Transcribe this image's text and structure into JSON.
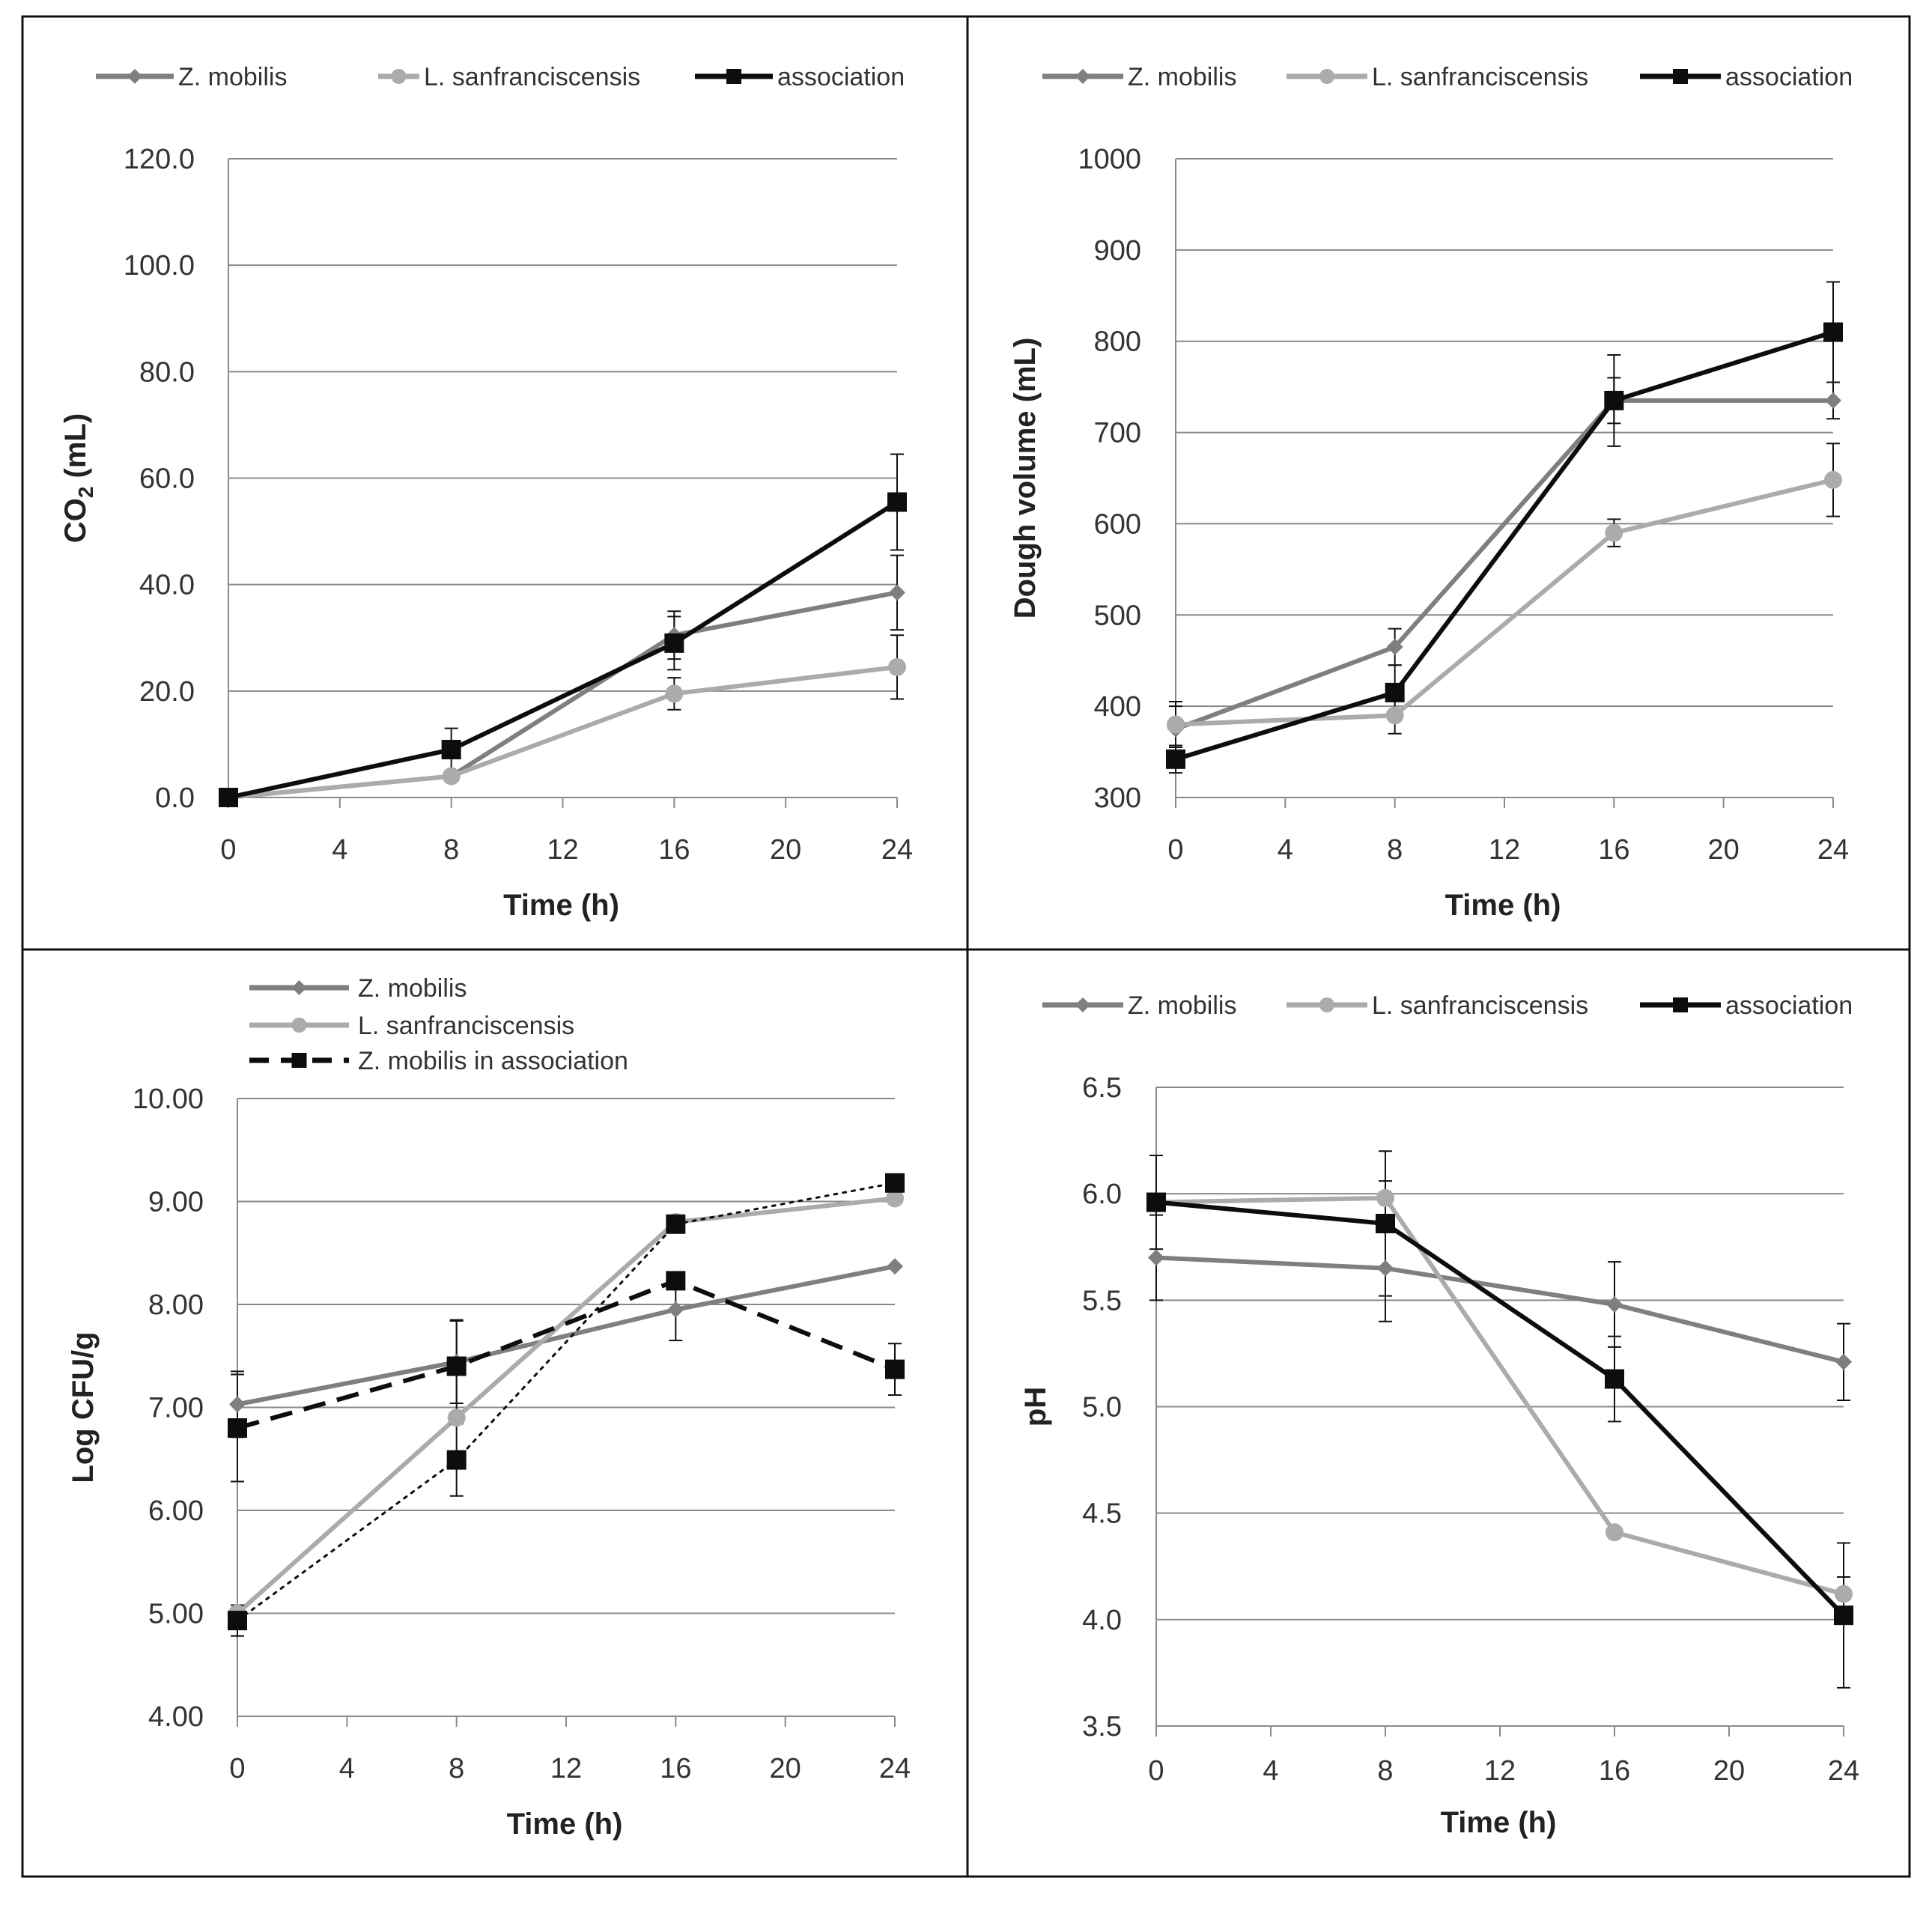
{
  "series_colors": {
    "z_mobilis": "#7f7f7f",
    "l_sanfranciscensis": "#ababab",
    "association": "#0d0d0d"
  },
  "chart_data": [
    {
      "id": "co2",
      "type": "line",
      "title": "",
      "xlabel": "Time (h)",
      "ylabel_main": "CO",
      "ylabel_sub": "2",
      "ylabel_tail": " (mL)",
      "xticks": [
        "0",
        "4",
        "8",
        "12",
        "16",
        "20",
        "24"
      ],
      "yticks": [
        "0.0",
        "20.0",
        "40.0",
        "60.0",
        "80.0",
        "100.0",
        "120.0"
      ],
      "xlim": [
        0,
        24
      ],
      "ylim": [
        0,
        120
      ],
      "grid": true,
      "legend_position": "top",
      "legend": [
        "Z. mobilis",
        "L. sanfranciscensis",
        "association"
      ],
      "x": [
        0,
        8,
        16,
        24
      ],
      "series": [
        {
          "name": "Z. mobilis",
          "key": "z_mobilis",
          "marker": "diamond",
          "dash": "solid",
          "values": [
            0.0,
            4.0,
            30.5,
            38.5
          ],
          "errors": [
            0,
            0,
            4.5,
            7.0
          ]
        },
        {
          "name": "L. sanfranciscensis",
          "key": "l_sanfranciscensis",
          "marker": "circle",
          "dash": "solid",
          "values": [
            0.0,
            4.0,
            19.5,
            24.5
          ],
          "errors": [
            0,
            0,
            3.0,
            6.0
          ]
        },
        {
          "name": "association",
          "key": "association",
          "marker": "square",
          "dash": "solid",
          "values": [
            0.0,
            9.0,
            29.0,
            55.5
          ],
          "errors": [
            0,
            4.0,
            5.0,
            9.0
          ]
        }
      ]
    },
    {
      "id": "dough",
      "type": "line",
      "title": "",
      "xlabel": "Time (h)",
      "ylabel_main": "Dough volume (mL)",
      "ylabel_sub": "",
      "ylabel_tail": "",
      "xticks": [
        "0",
        "4",
        "8",
        "12",
        "16",
        "20",
        "24"
      ],
      "yticks": [
        "300",
        "400",
        "500",
        "600",
        "700",
        "800",
        "900",
        "1000"
      ],
      "xlim": [
        0,
        24
      ],
      "ylim": [
        300,
        1000
      ],
      "grid": true,
      "legend_position": "top",
      "legend": [
        "Z. mobilis",
        "L. sanfranciscensis",
        "association"
      ],
      "x": [
        0,
        8,
        16,
        24
      ],
      "series": [
        {
          "name": "Z. mobilis",
          "key": "z_mobilis",
          "marker": "diamond",
          "dash": "solid",
          "values": [
            375,
            465,
            735,
            735
          ],
          "errors": [
            25,
            20,
            25,
            20
          ]
        },
        {
          "name": "L. sanfranciscensis",
          "key": "l_sanfranciscensis",
          "marker": "circle",
          "dash": "solid",
          "values": [
            380,
            390,
            590,
            648
          ],
          "errors": [
            25,
            20,
            15,
            40
          ]
        },
        {
          "name": "association",
          "key": "association",
          "marker": "square",
          "dash": "solid",
          "values": [
            342,
            415,
            735,
            810
          ],
          "errors": [
            15,
            30,
            50,
            55
          ]
        }
      ]
    },
    {
      "id": "cfu",
      "type": "line",
      "title": "",
      "xlabel": "Time (h)",
      "ylabel_main": "Log CFU/g",
      "ylabel_sub": "",
      "ylabel_tail": "",
      "xticks": [
        "0",
        "4",
        "8",
        "12",
        "16",
        "20",
        "24"
      ],
      "yticks": [
        "4.00",
        "5.00",
        "6.00",
        "7.00",
        "8.00",
        "9.00",
        "10.00"
      ],
      "xlim": [
        0,
        24
      ],
      "ylim": [
        4,
        10
      ],
      "grid": true,
      "legend_position": "top-left",
      "legend": [
        "Z. mobilis",
        "L. sanfranciscensis",
        "Z. mobilis in association"
      ],
      "x": [
        0,
        8,
        16,
        24
      ],
      "series": [
        {
          "name": "Z. mobilis",
          "key": "z_mobilis",
          "marker": "diamond",
          "dash": "solid",
          "values": [
            7.03,
            7.44,
            7.95,
            8.37
          ],
          "errors": [
            0.32,
            0.4,
            0.3,
            0.0
          ]
        },
        {
          "name": "L. sanfranciscensis",
          "key": "l_sanfranciscensis",
          "marker": "circle",
          "dash": "solid",
          "values": [
            5.0,
            6.9,
            8.8,
            9.03
          ],
          "errors": [
            0.0,
            0.0,
            0.0,
            0.0
          ]
        },
        {
          "name": "Z. mobilis in association",
          "key": "association",
          "marker": "square",
          "dash": "dashed",
          "values": [
            6.8,
            7.4,
            8.23,
            7.37
          ],
          "errors": [
            0.52,
            0.45,
            0.0,
            0.25
          ]
        },
        {
          "name": "",
          "key": "association",
          "marker": "square",
          "dash": "dotted",
          "values": [
            4.93,
            6.49,
            8.78,
            9.18
          ],
          "errors": [
            0.15,
            0.35,
            0.0,
            0.0
          ]
        }
      ]
    },
    {
      "id": "ph",
      "type": "line",
      "title": "",
      "xlabel": "Time (h)",
      "ylabel_main": "pH",
      "ylabel_sub": "",
      "ylabel_tail": "",
      "xticks": [
        "0",
        "4",
        "8",
        "12",
        "16",
        "20",
        "24"
      ],
      "yticks": [
        "3.5",
        "4.0",
        "4.5",
        "5.0",
        "5.5",
        "6.0",
        "6.5"
      ],
      "xlim": [
        0,
        24
      ],
      "ylim": [
        3.5,
        6.5
      ],
      "grid": true,
      "legend_position": "top",
      "legend": [
        "Z. mobilis",
        "L. sanfranciscensis",
        "association"
      ],
      "x": [
        0,
        8,
        16,
        24
      ],
      "series": [
        {
          "name": "Z. mobilis",
          "key": "z_mobilis",
          "marker": "diamond",
          "dash": "solid",
          "values": [
            5.7,
            5.65,
            5.48,
            5.21
          ],
          "errors": [
            0.2,
            0.25,
            0.2,
            0.18
          ]
        },
        {
          "name": "L. sanfranciscensis",
          "key": "l_sanfranciscensis",
          "marker": "circle",
          "dash": "solid",
          "values": [
            5.96,
            5.98,
            4.41,
            4.12
          ],
          "errors": [
            0.0,
            0.08,
            0.0,
            0.08
          ]
        },
        {
          "name": "association",
          "key": "association",
          "marker": "square",
          "dash": "solid",
          "values": [
            5.96,
            5.86,
            5.13,
            4.02
          ],
          "errors": [
            0.22,
            0.34,
            0.2,
            0.34
          ]
        }
      ]
    }
  ]
}
